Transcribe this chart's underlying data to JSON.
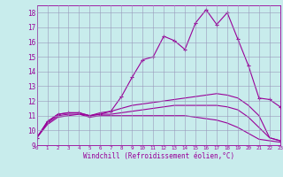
{
  "xlabel": "Windchill (Refroidissement éolien,°C)",
  "xlim": [
    0,
    23
  ],
  "ylim": [
    9,
    18.5
  ],
  "yticks": [
    9,
    10,
    11,
    12,
    13,
    14,
    15,
    16,
    17,
    18
  ],
  "xticks": [
    0,
    1,
    2,
    3,
    4,
    5,
    6,
    7,
    8,
    9,
    10,
    11,
    12,
    13,
    14,
    15,
    16,
    17,
    18,
    19,
    20,
    21,
    22,
    23
  ],
  "background_color": "#c8ecec",
  "line_color": "#990099",
  "grid_color": "#9999bb",
  "lines": [
    {
      "x": [
        0,
        1,
        2,
        3,
        4,
        5,
        6,
        7,
        8,
        9,
        10,
        11,
        12,
        13,
        14,
        15,
        16,
        17,
        18,
        19,
        20,
        21,
        22,
        23
      ],
      "y": [
        9.5,
        10.6,
        11.1,
        11.2,
        11.2,
        11.0,
        11.1,
        11.3,
        12.3,
        13.6,
        14.8,
        15.0,
        16.4,
        16.1,
        15.5,
        17.3,
        18.2,
        17.2,
        18.0,
        16.2,
        14.4,
        12.2,
        12.1,
        11.6
      ],
      "marker": "+"
    },
    {
      "x": [
        0,
        1,
        2,
        3,
        4,
        5,
        6,
        7,
        8,
        9,
        10,
        11,
        12,
        13,
        14,
        15,
        16,
        17,
        18,
        19,
        20,
        21,
        22,
        23
      ],
      "y": [
        9.5,
        10.6,
        11.1,
        11.2,
        11.2,
        11.0,
        11.2,
        11.3,
        11.5,
        11.7,
        11.8,
        11.9,
        12.0,
        12.1,
        12.2,
        12.3,
        12.4,
        12.5,
        12.4,
        12.2,
        11.7,
        11.0,
        9.5,
        9.3
      ],
      "marker": null
    },
    {
      "x": [
        0,
        1,
        2,
        3,
        4,
        5,
        6,
        7,
        8,
        9,
        10,
        11,
        12,
        13,
        14,
        15,
        16,
        17,
        18,
        19,
        20,
        21,
        22,
        23
      ],
      "y": [
        9.5,
        10.5,
        11.0,
        11.1,
        11.1,
        11.0,
        11.1,
        11.1,
        11.2,
        11.3,
        11.4,
        11.5,
        11.6,
        11.7,
        11.7,
        11.7,
        11.7,
        11.7,
        11.6,
        11.4,
        10.9,
        10.2,
        9.5,
        9.3
      ],
      "marker": null
    },
    {
      "x": [
        0,
        1,
        2,
        3,
        4,
        5,
        6,
        7,
        8,
        9,
        10,
        11,
        12,
        13,
        14,
        15,
        16,
        17,
        18,
        19,
        20,
        21,
        22,
        23
      ],
      "y": [
        9.5,
        10.4,
        10.9,
        11.0,
        11.1,
        10.9,
        11.0,
        11.0,
        11.0,
        11.0,
        11.0,
        11.0,
        11.0,
        11.0,
        11.0,
        10.9,
        10.8,
        10.7,
        10.5,
        10.2,
        9.8,
        9.4,
        9.3,
        9.2
      ],
      "marker": null
    }
  ]
}
